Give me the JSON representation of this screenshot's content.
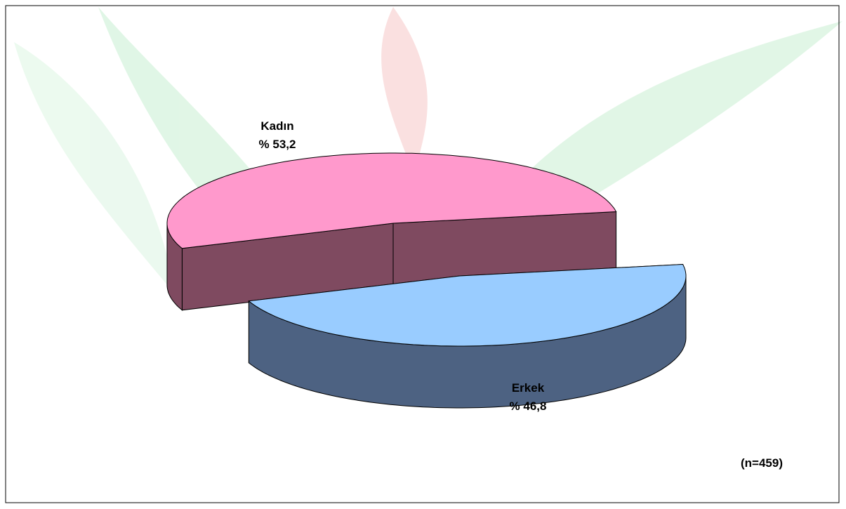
{
  "chart_data": {
    "type": "pie",
    "categories": [
      "Kadın",
      "Erkek"
    ],
    "values": [
      53.2,
      46.8
    ],
    "value_labels": [
      "% 53,2",
      "% 46,8"
    ],
    "colors": [
      "#ff99cc",
      "#99ccff"
    ],
    "side_colors": [
      "#7f4a60",
      "#4d6282"
    ],
    "annotation": "(n=459)"
  }
}
